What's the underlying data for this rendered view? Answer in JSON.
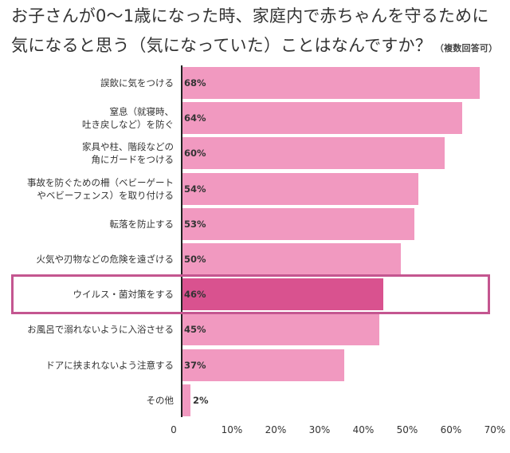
{
  "chart_data": {
    "type": "bar",
    "orientation": "horizontal",
    "title": "お子さんが0～1歳になった時、家庭内で赤ちゃんを守るために気になると思う（気になっていた）ことはなんですか？",
    "title_lines": [
      "お子さんが0～1歳になった時、家庭内で赤ちゃんを守るために",
      "気になると思う（気になっていた）ことはなんですか？"
    ],
    "note": "（複数回答可）",
    "categories": [
      "誤飲に気をつける",
      "窒息（就寝時、\n吐き戻しなど）を防ぐ",
      "家具や柱、階段などの\n角にガードをつける",
      "事故を防ぐための柵（ベビーゲート\nやベビーフェンス）を取り付ける",
      "転落を防止する",
      "火気や刃物などの危険を遠ざける",
      "ウイルス・菌対策をする",
      "お風呂で溺れないように入浴させる",
      "ドアに挟まれないよう注意する",
      "その他"
    ],
    "values": [
      68,
      64,
      60,
      54,
      53,
      50,
      46,
      45,
      37,
      2
    ],
    "value_labels": [
      "68%",
      "64%",
      "60%",
      "54%",
      "53%",
      "50%",
      "46%",
      "45%",
      "37%",
      "2%"
    ],
    "highlighted_category": "ウイルス・菌対策をする",
    "xlim": [
      0,
      70
    ],
    "xticks": [
      "0",
      "10%",
      "20%",
      "30%",
      "40%",
      "50%",
      "60%",
      "70%"
    ],
    "colors": {
      "bar": "#f199c0",
      "highlight_bar": "#d9528f",
      "highlight_border": "#c45690"
    }
  }
}
